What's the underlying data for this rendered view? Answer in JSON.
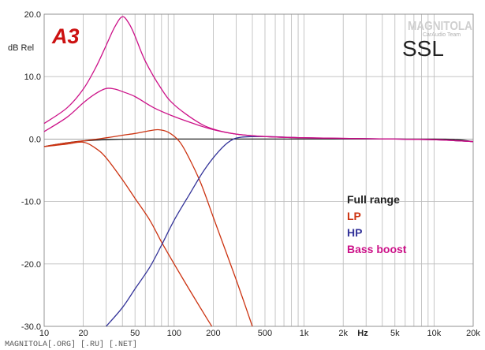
{
  "chart_data": {
    "type": "line",
    "title": "",
    "ylabel": "dB Rel",
    "xlabel": "Hz",
    "x_scale": "log",
    "xlim": [
      10,
      20000
    ],
    "ylim": [
      -30,
      20
    ],
    "grid": true,
    "x_ticks": [
      {
        "v": 10,
        "label": "10"
      },
      {
        "v": 20,
        "label": "20"
      },
      {
        "v": 50,
        "label": "50"
      },
      {
        "v": 100,
        "label": "100"
      },
      {
        "v": 200,
        "label": "200"
      },
      {
        "v": 500,
        "label": "500"
      },
      {
        "v": 1000,
        "label": "1k"
      },
      {
        "v": 2000,
        "label": "2k"
      },
      {
        "v": 5000,
        "label": "5k"
      },
      {
        "v": 10000,
        "label": "10k"
      },
      {
        "v": 20000,
        "label": "20k"
      }
    ],
    "y_ticks": [
      {
        "v": 20,
        "label": "20.0"
      },
      {
        "v": 10,
        "label": "10.0"
      },
      {
        "v": 0,
        "label": "0.0"
      },
      {
        "v": -10,
        "label": "-10.0"
      },
      {
        "v": -20,
        "label": "-20.0"
      },
      {
        "v": -30,
        "label": "-30.0"
      }
    ],
    "legend_placement": "right",
    "series": [
      {
        "name": "Full range",
        "color": "#222222",
        "points": [
          [
            10,
            -1.2
          ],
          [
            15,
            -0.6
          ],
          [
            20,
            -0.3
          ],
          [
            30,
            -0.1
          ],
          [
            50,
            0
          ],
          [
            100,
            0
          ],
          [
            1000,
            0
          ],
          [
            10000,
            0
          ],
          [
            15000,
            -0.1
          ],
          [
            20000,
            -0.4
          ]
        ]
      },
      {
        "name": "LP",
        "color": "#cc3311",
        "points": [
          [
            10,
            -1.2
          ],
          [
            15,
            -0.6
          ],
          [
            20,
            -0.3
          ],
          [
            30,
            0.2
          ],
          [
            40,
            0.6
          ],
          [
            50,
            0.9
          ],
          [
            60,
            1.2
          ],
          [
            75,
            1.5
          ],
          [
            90,
            1.1
          ],
          [
            110,
            -0.4
          ],
          [
            130,
            -3
          ],
          [
            160,
            -7
          ],
          [
            200,
            -12.5
          ],
          [
            250,
            -18
          ],
          [
            300,
            -22.5
          ],
          [
            350,
            -26.5
          ],
          [
            400,
            -30
          ]
        ]
      },
      {
        "name": "LP",
        "color": "#cc3311",
        "points": [
          [
            10,
            -1.2
          ],
          [
            15,
            -0.8
          ],
          [
            20,
            -0.5
          ],
          [
            25,
            -1.5
          ],
          [
            30,
            -3
          ],
          [
            40,
            -6.5
          ],
          [
            50,
            -9.5
          ],
          [
            65,
            -13
          ],
          [
            80,
            -16.5
          ],
          [
            100,
            -20
          ],
          [
            130,
            -24
          ],
          [
            170,
            -28
          ],
          [
            195,
            -30
          ]
        ]
      },
      {
        "name": "HP",
        "color": "#333399",
        "points": [
          [
            30,
            -30
          ],
          [
            40,
            -27
          ],
          [
            50,
            -24
          ],
          [
            65,
            -20.5
          ],
          [
            80,
            -17
          ],
          [
            100,
            -13
          ],
          [
            130,
            -9
          ],
          [
            170,
            -5
          ],
          [
            220,
            -2
          ],
          [
            270,
            -0.3
          ],
          [
            330,
            0.3
          ],
          [
            500,
            0.4
          ],
          [
            1000,
            0.2
          ],
          [
            2000,
            0.1
          ],
          [
            5000,
            0
          ],
          [
            10000,
            -0.1
          ],
          [
            20000,
            -0.4
          ]
        ]
      },
      {
        "name": "Bass boost",
        "color": "#cc1188",
        "points": [
          [
            10,
            2.5
          ],
          [
            15,
            5
          ],
          [
            20,
            8
          ],
          [
            25,
            11.5
          ],
          [
            30,
            15
          ],
          [
            35,
            18
          ],
          [
            40,
            19.6
          ],
          [
            45,
            18.5
          ],
          [
            50,
            16.5
          ],
          [
            60,
            12.5
          ],
          [
            80,
            8
          ],
          [
            100,
            5.5
          ],
          [
            150,
            2.8
          ],
          [
            200,
            1.6
          ],
          [
            300,
            0.8
          ],
          [
            500,
            0.4
          ],
          [
            1000,
            0.2
          ],
          [
            5000,
            0
          ],
          [
            10000,
            -0.1
          ],
          [
            20000,
            -0.4
          ]
        ]
      },
      {
        "name": "Bass boost",
        "color": "#cc1188",
        "points": [
          [
            10,
            1.2
          ],
          [
            15,
            3.5
          ],
          [
            20,
            5.8
          ],
          [
            25,
            7.3
          ],
          [
            30,
            8.1
          ],
          [
            35,
            8
          ],
          [
            40,
            7.6
          ],
          [
            50,
            6.8
          ],
          [
            70,
            5
          ],
          [
            100,
            3.6
          ],
          [
            150,
            2.3
          ],
          [
            200,
            1.5
          ],
          [
            300,
            0.8
          ],
          [
            500,
            0.4
          ],
          [
            1000,
            0.2
          ],
          [
            5000,
            0
          ],
          [
            10000,
            -0.1
          ],
          [
            20000,
            -0.4
          ]
        ]
      }
    ],
    "legend": [
      {
        "label": "Full range",
        "color": "#222222"
      },
      {
        "label": "LP",
        "color": "#cc3311"
      },
      {
        "label": "HP",
        "color": "#333399"
      },
      {
        "label": "Bass boost",
        "color": "#cc1188"
      }
    ]
  },
  "badge": {
    "text": "A3",
    "color": "#cc1111"
  },
  "brand": {
    "text": "SSL"
  },
  "logo": {
    "main": "MAGNITOLA",
    "sub": "CarAudio Team"
  },
  "watermark": {
    "text": "MAGNITOLA[.ORG] [.RU] [.NET]"
  }
}
